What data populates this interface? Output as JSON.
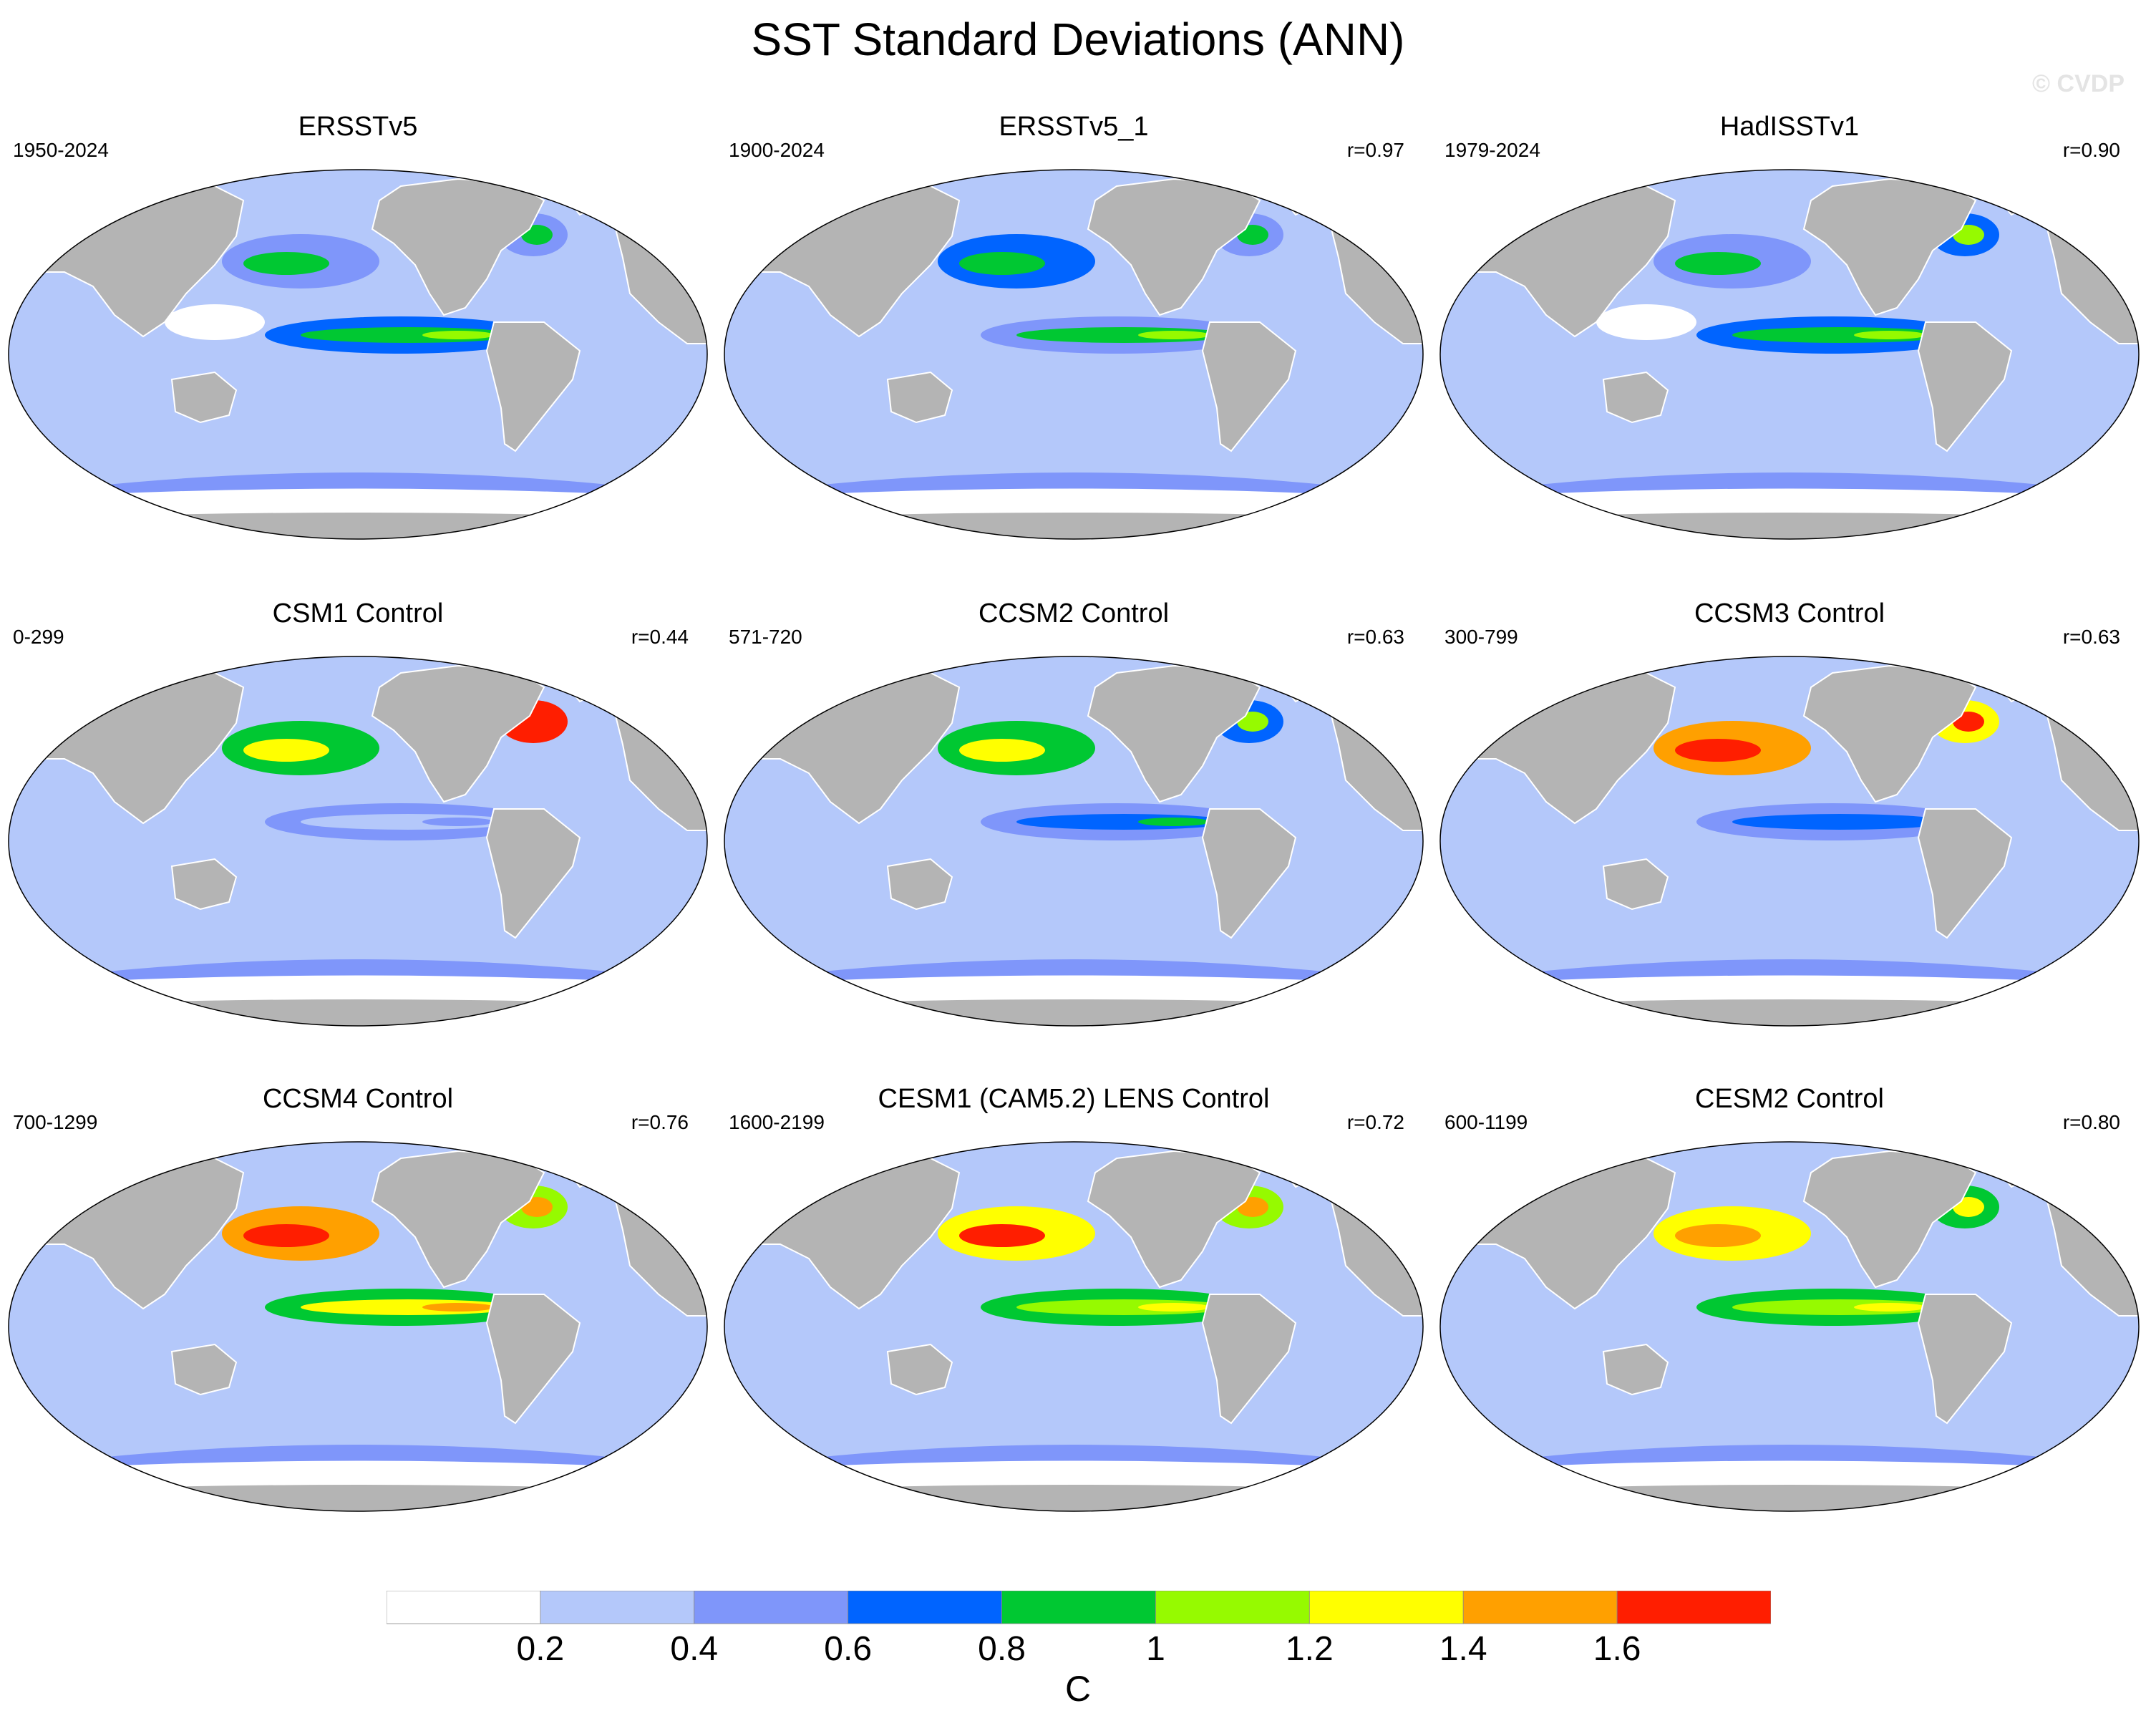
{
  "chart_data": {
    "type": "heatmap",
    "title": "SST Standard Deviations (ANN)",
    "watermark": "© CVDP",
    "units": "C",
    "colorbar": {
      "levels": [
        0.2,
        0.4,
        0.6,
        0.8,
        1,
        1.2,
        1.4,
        1.6
      ],
      "tick_labels": [
        "0.2",
        "0.4",
        "0.6",
        "0.8",
        "1",
        "1.2",
        "1.4",
        "1.6"
      ],
      "colors": [
        "#ffffff",
        "#b4c8fa",
        "#7f96fa",
        "#0064ff",
        "#00c832",
        "#96fa00",
        "#ffff00",
        "#ffa000",
        "#ff1e00"
      ]
    },
    "panels": [
      {
        "name": "ERSSTv5",
        "period": "1950-2024",
        "r": "",
        "enso": 0.9,
        "north_pacific": 0.5,
        "north_atlantic": 0.4,
        "white_patch": true
      },
      {
        "name": "ERSSTv5_1",
        "period": "1900-2024",
        "r": "r=0.97",
        "enso": 0.85,
        "north_pacific": 0.6,
        "north_atlantic": 0.5,
        "white_patch": false
      },
      {
        "name": "HadISSTv1",
        "period": "1979-2024",
        "r": "r=0.90",
        "enso": 0.9,
        "north_pacific": 0.5,
        "north_atlantic": 0.6,
        "white_patch": true
      },
      {
        "name": "CSM1 Control",
        "period": "0-299",
        "r": "r=0.44",
        "enso": 0.3,
        "north_pacific": 0.9,
        "north_atlantic": 1.8,
        "white_patch": false
      },
      {
        "name": "CCSM2 Control",
        "period": "571-720",
        "r": "r=0.63",
        "enso": 0.65,
        "north_pacific": 0.9,
        "north_atlantic": 0.7,
        "white_patch": false
      },
      {
        "name": "CCSM3 Control",
        "period": "300-799",
        "r": "r=0.63",
        "enso": 0.6,
        "north_pacific": 1.4,
        "north_atlantic": 1.3,
        "white_patch": false
      },
      {
        "name": "CCSM4 Control",
        "period": "700-1299",
        "r": "r=0.76",
        "enso": 1.25,
        "north_pacific": 1.5,
        "north_atlantic": 1.0,
        "white_patch": false
      },
      {
        "name": "CESM1 (CAM5.2) LENS Control",
        "period": "1600-2199",
        "r": "r=0.72",
        "enso": 1.1,
        "north_pacific": 1.35,
        "north_atlantic": 1.1,
        "white_patch": false
      },
      {
        "name": "CESM2 Control",
        "period": "600-1199",
        "r": "r=0.80",
        "enso": 1.1,
        "north_pacific": 1.25,
        "north_atlantic": 0.95,
        "white_patch": false
      }
    ]
  }
}
